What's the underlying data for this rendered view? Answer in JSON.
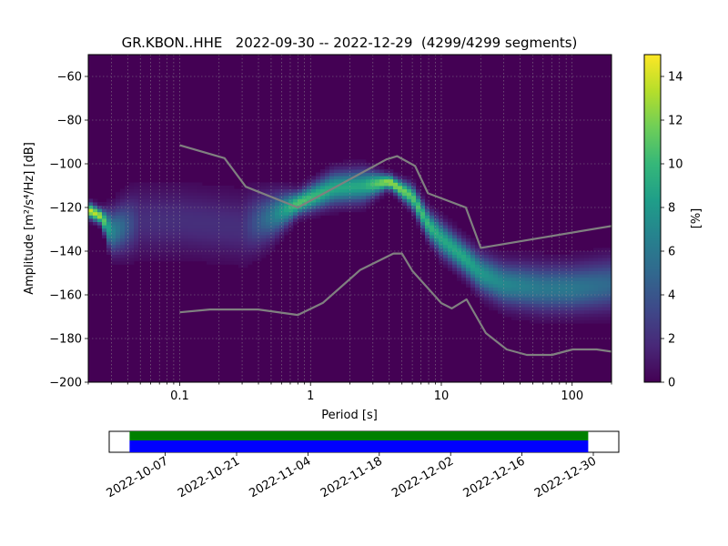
{
  "chart_data": {
    "type": "heatmap",
    "title": "GR.KBON..HHE   2022-09-30 -- 2022-12-29  (4299/4299 segments)",
    "xlabel": "Period [s]",
    "ylabel": "Amplitude [m²/s⁴/Hz] [dB]",
    "xscale": "log",
    "xlim": [
      0.02,
      200
    ],
    "ylim": [
      -200,
      -50
    ],
    "xticks": [
      {
        "value": 0.1,
        "label": "0.1"
      },
      {
        "value": 1,
        "label": "1"
      },
      {
        "value": 10,
        "label": "10"
      },
      {
        "value": 100,
        "label": "100"
      }
    ],
    "yticks": [
      -60,
      -80,
      -100,
      -120,
      -140,
      -160,
      -180,
      -200
    ],
    "grid": true,
    "colorbar": {
      "label": "[%]",
      "range": [
        0,
        15
      ],
      "ticks": [
        0,
        2,
        4,
        6,
        8,
        10,
        12,
        14
      ],
      "colormap": "viridis"
    },
    "density_ridge": [
      {
        "period": 0.02,
        "db": -121,
        "peak_pct": 14
      },
      {
        "period": 0.025,
        "db": -124,
        "peak_pct": 13
      },
      {
        "period": 0.03,
        "db": -131,
        "peak_pct": 7
      },
      {
        "period": 0.05,
        "db": -126,
        "peak_pct": 2
      },
      {
        "period": 0.1,
        "db": -126,
        "peak_pct": 2
      },
      {
        "period": 0.3,
        "db": -129,
        "peak_pct": 2
      },
      {
        "period": 0.5,
        "db": -124,
        "peak_pct": 6
      },
      {
        "period": 0.8,
        "db": -118,
        "peak_pct": 11
      },
      {
        "period": 1.5,
        "db": -111,
        "peak_pct": 9
      },
      {
        "period": 2.5,
        "db": -110,
        "peak_pct": 9
      },
      {
        "period": 4,
        "db": -108,
        "peak_pct": 13
      },
      {
        "period": 6,
        "db": -115,
        "peak_pct": 11
      },
      {
        "period": 8,
        "db": -128,
        "peak_pct": 10
      },
      {
        "period": 10,
        "db": -134,
        "peak_pct": 9
      },
      {
        "period": 15,
        "db": -143,
        "peak_pct": 9
      },
      {
        "period": 20,
        "db": -150,
        "peak_pct": 8
      },
      {
        "period": 30,
        "db": -155,
        "peak_pct": 7
      },
      {
        "period": 60,
        "db": -157,
        "peak_pct": 6
      },
      {
        "period": 100,
        "db": -157,
        "peak_pct": 6
      },
      {
        "period": 200,
        "db": -155,
        "peak_pct": 5
      }
    ],
    "series": [
      {
        "name": "",
        "role": "new high noise model",
        "color": "#808080",
        "points": [
          [
            0.1,
            -91.5
          ],
          [
            0.22,
            -97.4
          ],
          [
            0.32,
            -110.5
          ],
          [
            0.8,
            -120
          ],
          [
            3.8,
            -98
          ],
          [
            4.6,
            -96.5
          ],
          [
            6.3,
            -101
          ],
          [
            7.9,
            -113.5
          ],
          [
            15.4,
            -120
          ],
          [
            20,
            -138.5
          ],
          [
            354,
            -126
          ]
        ]
      },
      {
        "name": "",
        "role": "new low noise model",
        "color": "#808080",
        "points": [
          [
            0.1,
            -168
          ],
          [
            0.17,
            -166.7
          ],
          [
            0.4,
            -166.7
          ],
          [
            0.8,
            -169.2
          ],
          [
            1.24,
            -163.7
          ],
          [
            2.4,
            -148.6
          ],
          [
            4.3,
            -141.1
          ],
          [
            5,
            -141.1
          ],
          [
            6,
            -149
          ],
          [
            10,
            -163.8
          ],
          [
            12,
            -166.2
          ],
          [
            15.6,
            -162.1
          ],
          [
            21.9,
            -177.5
          ],
          [
            31.6,
            -185
          ],
          [
            45,
            -187.5
          ],
          [
            70,
            -187.5
          ],
          [
            101,
            -185
          ],
          [
            154,
            -185
          ],
          [
            200,
            -186
          ]
        ]
      }
    ]
  },
  "data_availability": {
    "dates": [
      "2022-10-07",
      "2022-10-21",
      "2022-11-04",
      "2022-11-18",
      "2022-12-02",
      "2022-12-16",
      "2022-12-30"
    ],
    "range": [
      "2022-09-26",
      "2023-01-04"
    ],
    "coverage": [
      "2022-09-30",
      "2022-12-29"
    ],
    "colors": {
      "top": "#008000",
      "bottom": "#0000ff"
    }
  }
}
